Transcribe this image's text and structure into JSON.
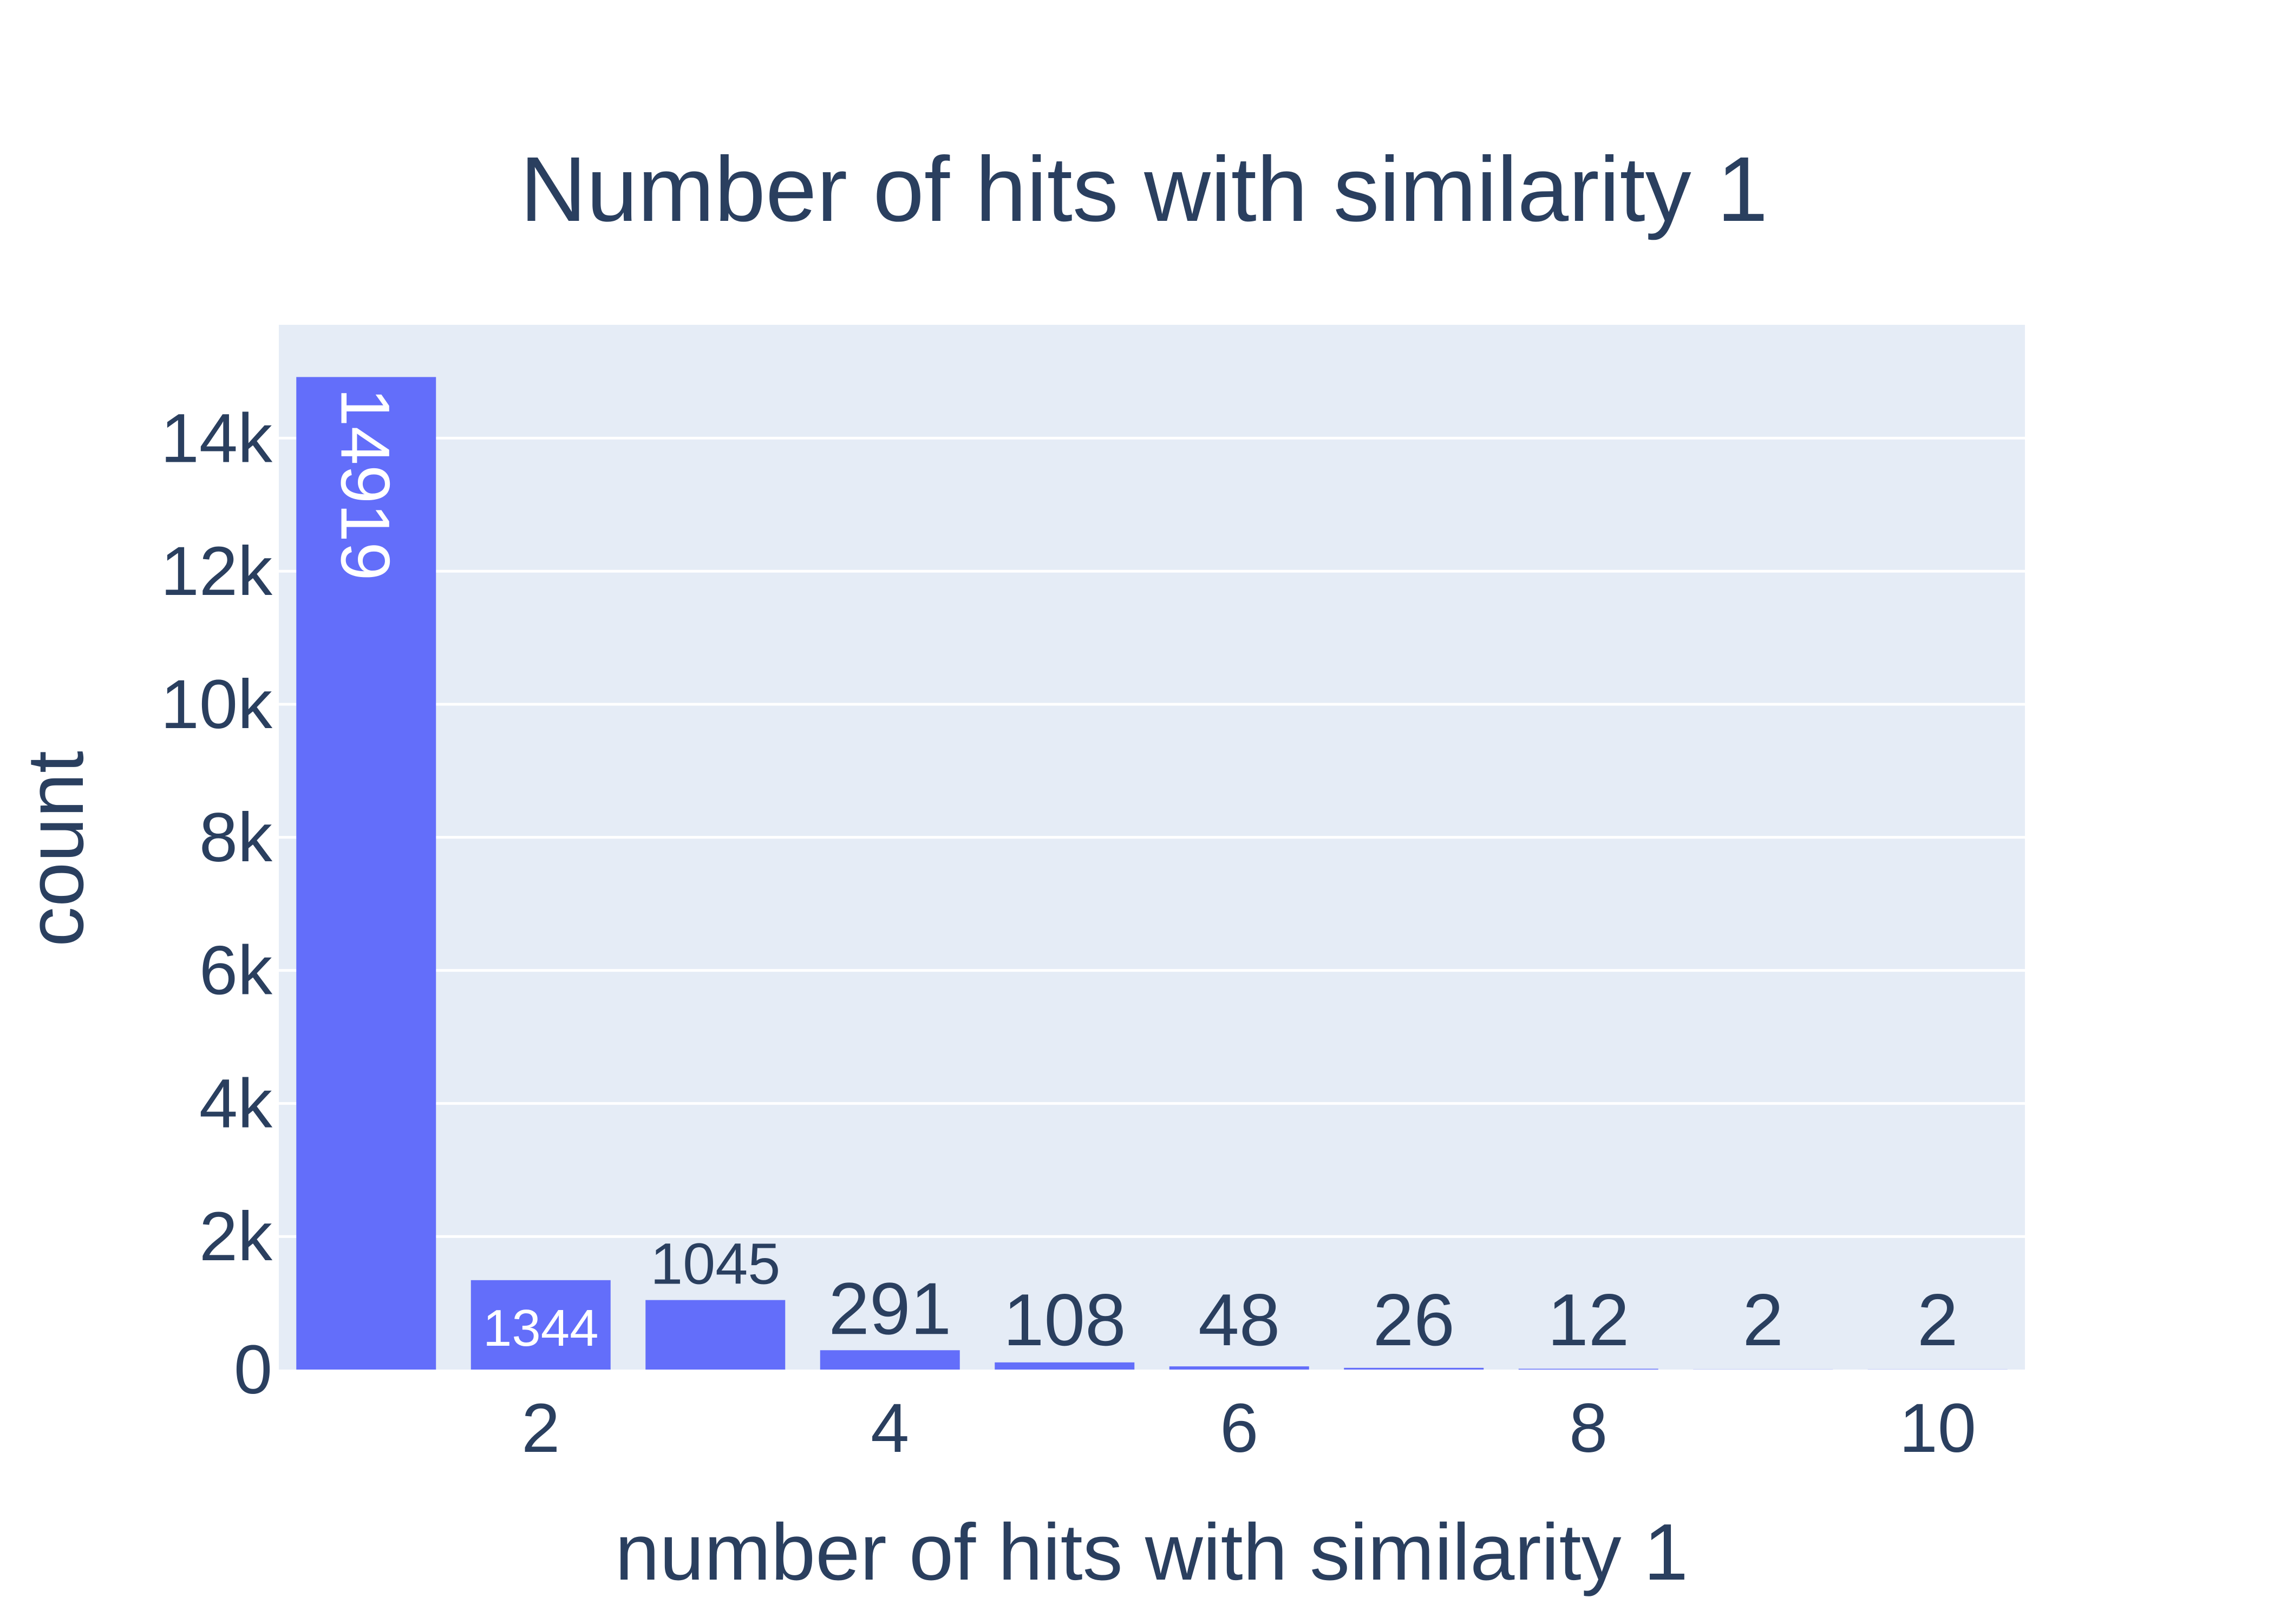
{
  "chart_data": {
    "type": "bar",
    "title": "Number of hits with similarity 1",
    "xlabel": "number of hits with similarity 1",
    "ylabel": "count",
    "x": [
      1,
      2,
      3,
      4,
      5,
      6,
      7,
      8,
      9,
      10
    ],
    "values": [
      14919,
      1344,
      1045,
      291,
      108,
      48,
      26,
      12,
      2,
      2
    ],
    "xticks": [
      "2",
      "4",
      "6",
      "8",
      "10"
    ],
    "xtick_values": [
      2,
      4,
      6,
      8,
      10
    ],
    "yticks": [
      "0",
      "2k",
      "4k",
      "6k",
      "8k",
      "10k",
      "12k",
      "14k"
    ],
    "ytick_values": [
      0,
      2000,
      4000,
      6000,
      8000,
      10000,
      12000,
      14000
    ],
    "xlim": [
      0.5,
      10.5
    ],
    "ylim": [
      0,
      15704
    ],
    "grid": true,
    "legend": "none",
    "colors": {
      "bar": "#636efa",
      "plot_bg": "#e5ecf6",
      "grid": "#ffffff",
      "text": "#2a3f5f",
      "label_inside": "#ffffff"
    }
  }
}
